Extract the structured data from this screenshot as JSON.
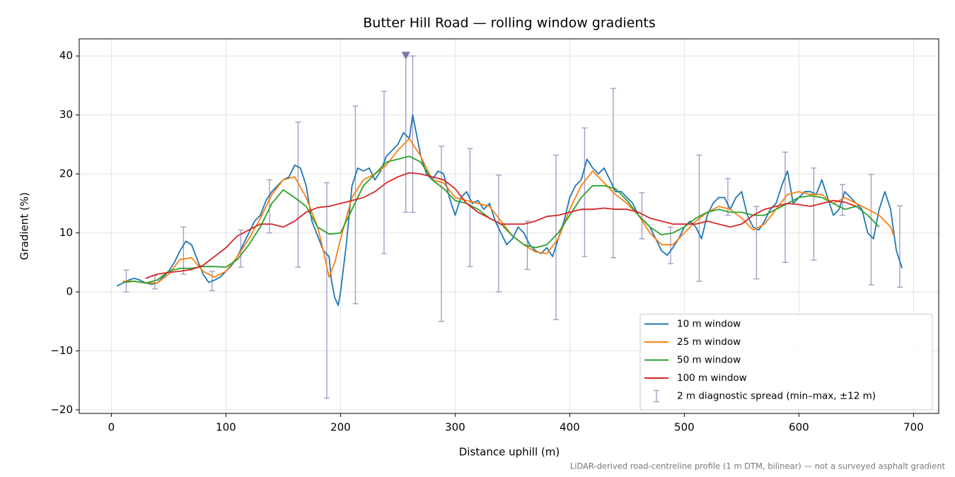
{
  "chart_data": {
    "type": "line",
    "title": "Butter Hill Road — rolling window gradients",
    "x_label": "Distance uphill (m)",
    "y_label": "Gradient (%)",
    "footnote": "LiDAR-derived road-centreline profile (1 m DTM, bilinear) — not a surveyed asphalt gradient",
    "xlim": [
      -28,
      722
    ],
    "ylim": [
      -20.6,
      42.9
    ],
    "xticks": [
      0,
      100,
      200,
      300,
      400,
      500,
      600,
      700
    ],
    "yticks": [
      {
        "value": -20,
        "label": "−20"
      },
      {
        "value": -10,
        "label": "−10"
      },
      0,
      10,
      20,
      30,
      40
    ],
    "grid": true,
    "legend": "lower right",
    "series": [
      {
        "name": "10 m window",
        "color": "#1f77b4",
        "x": [
          5,
          10,
          15,
          20,
          25,
          30,
          35,
          40,
          45,
          50,
          55,
          60,
          65,
          70,
          75,
          80,
          85,
          90,
          95,
          100,
          105,
          110,
          115,
          120,
          125,
          130,
          135,
          140,
          145,
          150,
          155,
          160,
          165,
          170,
          175,
          180,
          185,
          190,
          192,
          195,
          198,
          200,
          205,
          210,
          215,
          220,
          225,
          230,
          235,
          240,
          245,
          250,
          255,
          260,
          263,
          265,
          270,
          275,
          280,
          285,
          290,
          295,
          300,
          305,
          310,
          315,
          320,
          325,
          330,
          335,
          340,
          345,
          350,
          355,
          360,
          365,
          370,
          375,
          380,
          385,
          390,
          395,
          400,
          405,
          410,
          415,
          420,
          425,
          430,
          435,
          440,
          445,
          450,
          455,
          460,
          465,
          470,
          475,
          480,
          485,
          490,
          495,
          500,
          505,
          510,
          515,
          520,
          525,
          530,
          535,
          540,
          545,
          550,
          555,
          560,
          565,
          570,
          575,
          580,
          585,
          590,
          595,
          600,
          605,
          610,
          615,
          620,
          625,
          630,
          635,
          640,
          645,
          650,
          655,
          660,
          665,
          670,
          675,
          680,
          685,
          690
        ],
        "values": [
          1,
          1.5,
          2,
          2.3,
          2,
          1.5,
          1.3,
          1.5,
          2.5,
          3.5,
          5,
          7,
          8.6,
          8,
          5.5,
          3,
          1.6,
          2,
          2.5,
          3.5,
          4.5,
          6,
          8,
          10,
          12,
          13,
          15.5,
          17,
          18,
          19,
          19.5,
          21.5,
          21,
          18,
          12,
          9.5,
          7,
          6,
          2,
          -1,
          -2.3,
          0,
          8,
          18,
          21,
          20.5,
          21,
          19,
          20.5,
          23,
          24,
          25,
          27,
          26,
          30,
          28,
          23,
          20,
          19,
          20.5,
          20,
          16,
          13,
          16,
          17,
          15,
          15.5,
          14,
          15,
          12,
          10,
          8,
          9,
          11,
          10,
          8,
          7,
          6.5,
          7.5,
          6,
          9,
          12,
          16,
          18,
          19,
          22.5,
          21,
          20,
          21,
          19,
          17,
          17,
          16,
          15,
          13,
          12,
          11,
          9,
          7,
          6.2,
          7.5,
          9,
          11,
          12,
          11,
          9,
          13,
          15,
          16,
          16,
          14,
          16,
          17,
          13,
          11,
          10.5,
          12,
          14,
          15,
          18,
          20.5,
          15,
          16,
          17,
          17,
          16.5,
          19,
          16,
          13,
          14,
          17,
          16,
          15,
          14,
          10,
          9,
          14,
          17,
          14,
          7,
          4
        ]
      },
      {
        "name": "25 m window",
        "color": "#ff7f0e",
        "x": [
          10,
          20,
          30,
          40,
          50,
          60,
          70,
          80,
          90,
          100,
          110,
          120,
          130,
          140,
          150,
          160,
          170,
          180,
          185,
          190,
          195,
          200,
          210,
          220,
          230,
          240,
          250,
          260,
          270,
          280,
          290,
          300,
          310,
          320,
          330,
          340,
          350,
          360,
          370,
          380,
          390,
          400,
          410,
          420,
          430,
          440,
          450,
          460,
          470,
          480,
          490,
          500,
          510,
          520,
          530,
          540,
          550,
          560,
          570,
          580,
          590,
          600,
          610,
          620,
          630,
          640,
          650,
          660,
          670,
          680,
          683
        ],
        "values": [
          1.8,
          1.8,
          1.5,
          1.5,
          3,
          5.5,
          5.8,
          3.5,
          2.5,
          3.5,
          6,
          9,
          12.5,
          16.5,
          19,
          19.5,
          16,
          11,
          7,
          2.5,
          5,
          9,
          16,
          19,
          20,
          21.5,
          24,
          26,
          23,
          19,
          18.5,
          16,
          15.5,
          15,
          14.5,
          12,
          9.5,
          8,
          6.8,
          6.5,
          9,
          14,
          18,
          20.5,
          18.5,
          16.5,
          15,
          13,
          10,
          8,
          8,
          10,
          12,
          13.5,
          14.5,
          14,
          12.5,
          10.5,
          11.5,
          14,
          16.5,
          17,
          16.5,
          16.5,
          15,
          16,
          15,
          14,
          13,
          11,
          9.4
        ]
      },
      {
        "name": "50 m window",
        "color": "#2ca02c",
        "x": [
          10,
          20,
          30,
          40,
          50,
          60,
          70,
          80,
          90,
          100,
          110,
          120,
          130,
          140,
          150,
          160,
          170,
          180,
          190,
          200,
          210,
          220,
          230,
          240,
          250,
          260,
          270,
          280,
          290,
          300,
          310,
          320,
          330,
          340,
          350,
          360,
          370,
          380,
          390,
          400,
          410,
          420,
          430,
          440,
          450,
          460,
          470,
          480,
          490,
          500,
          510,
          520,
          530,
          540,
          550,
          560,
          570,
          580,
          590,
          600,
          610,
          620,
          630,
          640,
          650,
          660,
          670
        ],
        "values": [
          1.6,
          1.8,
          1.5,
          2,
          3.5,
          4,
          4,
          4.3,
          4.3,
          4.2,
          5.5,
          8,
          11,
          15,
          17.3,
          16,
          14.5,
          11,
          9.8,
          10,
          14,
          18,
          20,
          22,
          22.5,
          23,
          22,
          19,
          17.5,
          15.5,
          15,
          14,
          12.5,
          11.5,
          9.5,
          8,
          7.5,
          8,
          10,
          13,
          16,
          18,
          18,
          17.5,
          15.5,
          13,
          11,
          9.7,
          10,
          11,
          12.5,
          13.5,
          14,
          13.5,
          13.5,
          13,
          13,
          14,
          15,
          16,
          16.3,
          16,
          15,
          14,
          14.5,
          13,
          11
        ]
      },
      {
        "name": "100 m window",
        "color": "#d62728",
        "x": [
          30,
          40,
          50,
          60,
          70,
          80,
          90,
          100,
          110,
          120,
          130,
          140,
          150,
          160,
          170,
          180,
          190,
          200,
          210,
          220,
          230,
          240,
          250,
          260,
          270,
          280,
          290,
          300,
          310,
          320,
          330,
          340,
          350,
          360,
          370,
          380,
          390,
          400,
          410,
          420,
          430,
          440,
          450,
          460,
          470,
          480,
          490,
          500,
          510,
          520,
          530,
          540,
          550,
          560,
          570,
          580,
          590,
          600,
          610,
          620,
          630,
          640,
          650
        ],
        "values": [
          2.3,
          3,
          3.3,
          3.5,
          3.8,
          4.5,
          6,
          7.5,
          9.5,
          10.5,
          11.5,
          11.5,
          11,
          12,
          13.5,
          14.3,
          14.5,
          15,
          15.5,
          16,
          17,
          18.5,
          19.5,
          20.2,
          20,
          19.5,
          19,
          17.5,
          15,
          13.5,
          12.5,
          11.5,
          11.5,
          11.5,
          12,
          12.8,
          13,
          13.5,
          14,
          14,
          14.2,
          14,
          14,
          13.5,
          12.5,
          12,
          11.5,
          11.5,
          11.5,
          12,
          11.5,
          11,
          11.5,
          13,
          14,
          14.5,
          15,
          14.8,
          14.5,
          15,
          15.5,
          15.2,
          14.5
        ]
      }
    ],
    "errorbars": {
      "name": "2 m diagnostic spread (min–max, ±12 m)",
      "color": "#9d98c2",
      "x": [
        13,
        38,
        63,
        88,
        113,
        138,
        163,
        188,
        213,
        238,
        257,
        263,
        288,
        313,
        338,
        363,
        388,
        413,
        438,
        463,
        488,
        513,
        538,
        563,
        588,
        613,
        638,
        663,
        688
      ],
      "lower": [
        0,
        0.5,
        3,
        0.2,
        4.2,
        10,
        4.2,
        -18,
        -2,
        6.5,
        13.5,
        13.5,
        -5,
        4.3,
        0,
        3.8,
        -4.7,
        6,
        5.8,
        9,
        4.8,
        1.8,
        13,
        2.2,
        5,
        5.4,
        13,
        1.2,
        0.8
      ],
      "upper": [
        3.7,
        2.8,
        11,
        3.5,
        10.5,
        19,
        28.8,
        18.5,
        31.5,
        34,
        40,
        40,
        24.7,
        24.3,
        19.8,
        12,
        23.2,
        27.8,
        34.5,
        16.8,
        11,
        23.2,
        19.2,
        14.5,
        23.7,
        21,
        18.2,
        19.9,
        14.6
      ]
    },
    "peak_marker": {
      "x": 257,
      "y": 40,
      "color": "#8073ac"
    }
  }
}
